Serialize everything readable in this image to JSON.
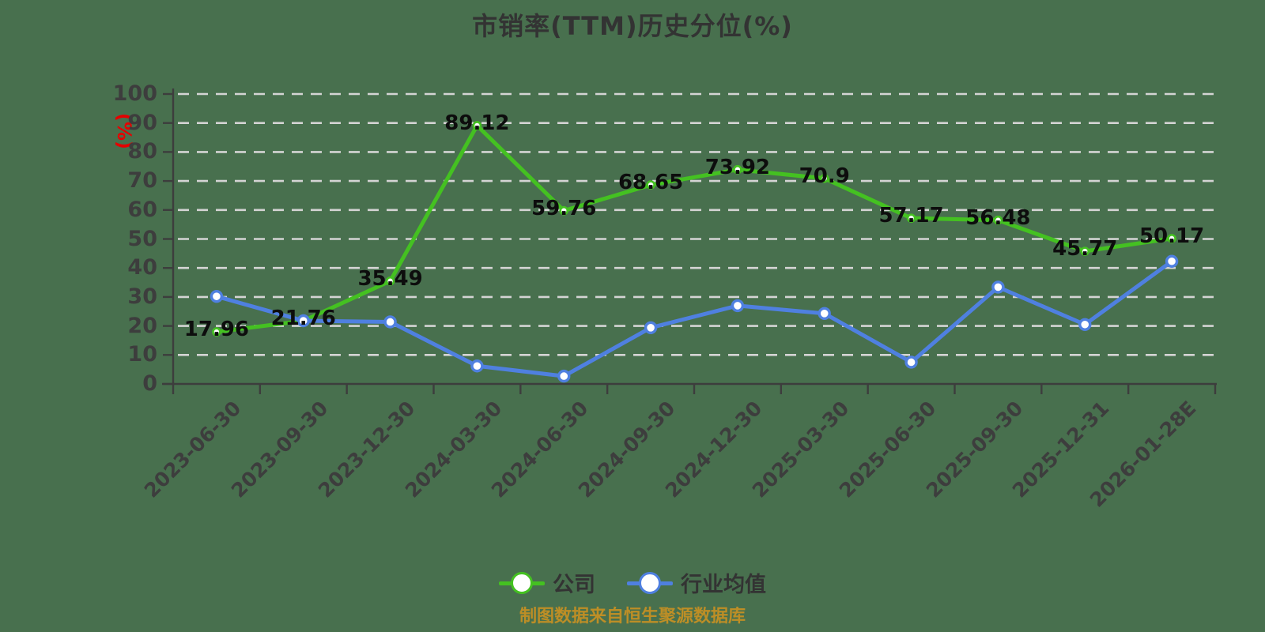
{
  "title": "市销率(TTM)历史分位(%)",
  "footer": "制图数据来自恒生聚源数据库",
  "chart_data": {
    "type": "line",
    "title": "市销率(TTM)历史分位(%)",
    "xlabel": "",
    "ylabel": "(%)",
    "ylim": [
      0,
      100
    ],
    "ytick_step": 10,
    "grid": "horizontal-dashed",
    "legend_position": "bottom-center",
    "categories": [
      "2023-06-30",
      "2023-09-30",
      "2023-12-30",
      "2024-03-30",
      "2024-06-30",
      "2024-09-30",
      "2024-12-30",
      "2025-03-30",
      "2025-06-30",
      "2025-09-30",
      "2025-12-31",
      "2026-01-28E"
    ],
    "series": [
      {
        "name": "公司",
        "color": "#44c121",
        "marker": "white-circle",
        "marker_radius": 4.5,
        "value_labels_shown": true,
        "values": [
          17.96,
          21.76,
          35.49,
          89.12,
          59.76,
          68.65,
          73.92,
          70.9,
          57.17,
          56.48,
          45.77,
          50.17
        ]
      },
      {
        "name": "行业均值",
        "color": "#4f80e0",
        "marker": "white-circle",
        "marker_radius": 6.5,
        "value_labels_shown": false,
        "values": [
          30.2,
          21.8,
          21.4,
          6.2,
          2.7,
          19.4,
          27.0,
          24.3,
          7.5,
          33.4,
          20.5,
          42.3
        ]
      }
    ],
    "colors": {
      "background": "#48704e",
      "gridline": "#d4d4d4",
      "axis": "#3d3d3d",
      "tick_label": "#3d3d3d",
      "value_label": "#0d0d0d",
      "ylabel": "#e60000",
      "title": "#333333",
      "legend_text": "#333333",
      "footer": "#bd8e26"
    }
  }
}
